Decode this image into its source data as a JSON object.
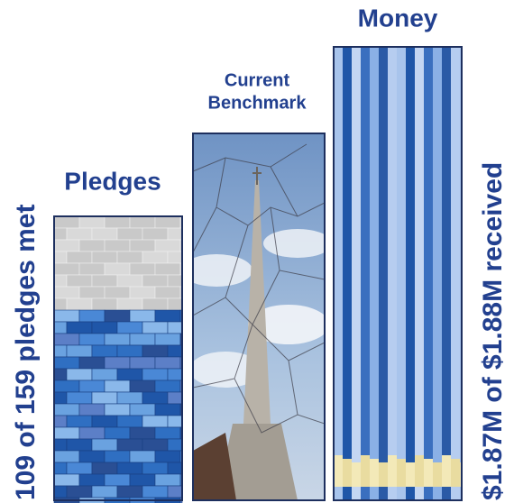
{
  "pledges": {
    "title": "Pledges",
    "caption": "109 of 159 pledges met"
  },
  "benchmark": {
    "title_lines": [
      "Current",
      "Benchmark"
    ]
  },
  "money": {
    "title": "Money",
    "caption": "$1.87M of $1.88M received"
  }
}
